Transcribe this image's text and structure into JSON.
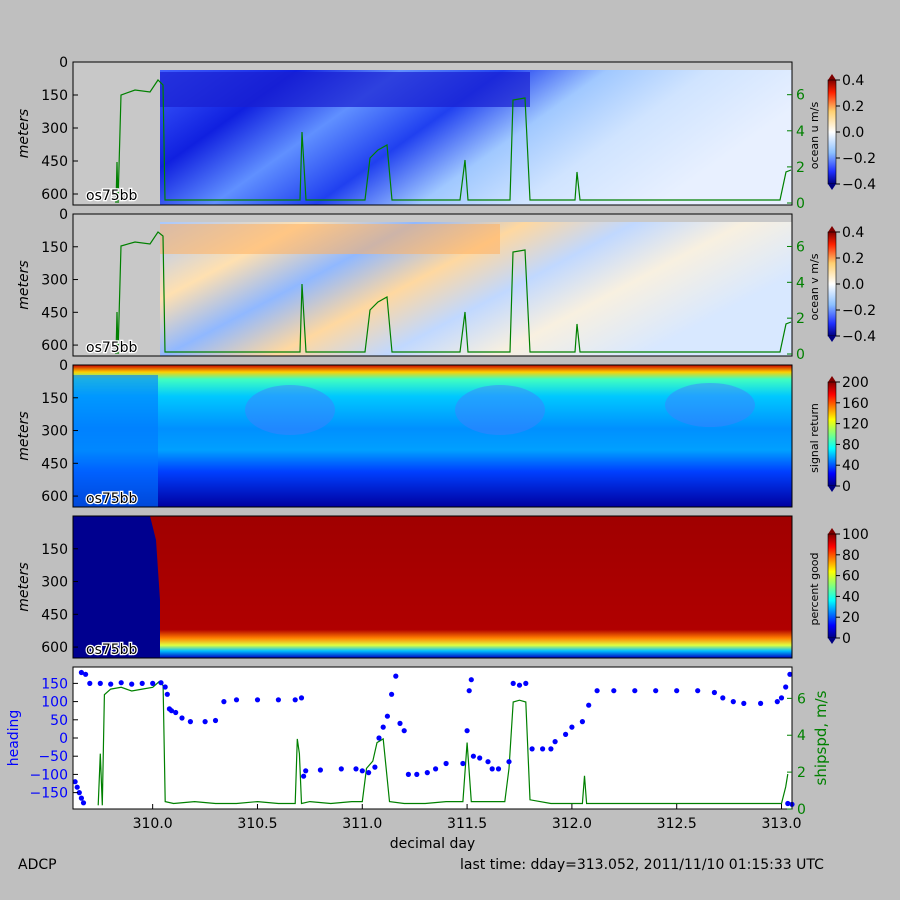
{
  "footer": {
    "left": "ADCP",
    "right": "last time: dday=313.052,  2011/11/10 01:15:33 UTC"
  },
  "colors": {
    "figure_bg": "#bfbfbf",
    "ship_speed_line": "#008000",
    "heading_points": "#0000ff",
    "no_data_gray": "#c8c8c8"
  },
  "chart_data": [
    {
      "type": "heatmap",
      "panel": "ocean-u",
      "ylabel": "meters",
      "y_ticks": [
        "0",
        "150",
        "300",
        "450",
        "600"
      ],
      "y_inverted": true,
      "ylim": [
        0,
        650
      ],
      "instrument_label": "os75bb",
      "colorbar": {
        "label": "ocean u m/s",
        "ticks": [
          "0.4",
          "0.2",
          "0.0",
          "−0.2",
          "−0.4"
        ],
        "range": [
          -0.45,
          0.45
        ],
        "colormap": "blue-white-red"
      },
      "right_axis": {
        "ticks": [
          "0",
          "2",
          "4",
          "6"
        ],
        "color": "#008000"
      }
    },
    {
      "type": "heatmap",
      "panel": "ocean-v",
      "ylabel": "meters",
      "y_ticks": [
        "0",
        "150",
        "300",
        "450",
        "600"
      ],
      "y_inverted": true,
      "ylim": [
        0,
        650
      ],
      "instrument_label": "os75bb",
      "colorbar": {
        "label": "ocean v m/s",
        "ticks": [
          "0.4",
          "0.2",
          "0.0",
          "−0.2",
          "−0.4"
        ],
        "range": [
          -0.45,
          0.45
        ],
        "colormap": "blue-white-red"
      },
      "right_axis": {
        "ticks": [
          "0",
          "2",
          "4",
          "6"
        ],
        "color": "#008000"
      }
    },
    {
      "type": "heatmap",
      "panel": "signal-return",
      "ylabel": "meters",
      "y_ticks": [
        "0",
        "150",
        "300",
        "450",
        "600"
      ],
      "y_inverted": true,
      "ylim": [
        0,
        650
      ],
      "instrument_label": "os75bb",
      "colorbar": {
        "label": "signal return",
        "ticks": [
          "200",
          "160",
          "120",
          "80",
          "40",
          "0"
        ],
        "range": [
          0,
          200
        ],
        "colormap": "jet"
      }
    },
    {
      "type": "heatmap",
      "panel": "percent-good",
      "ylabel": "meters",
      "y_ticks": [
        "150",
        "300",
        "450",
        "600"
      ],
      "y_inverted": true,
      "ylim": [
        0,
        650
      ],
      "instrument_label": "os75bb",
      "colorbar": {
        "label": "percent good",
        "ticks": [
          "100",
          "80",
          "60",
          "40",
          "20",
          "0"
        ],
        "range": [
          0,
          100
        ],
        "colormap": "jet"
      }
    },
    {
      "type": "scatter",
      "panel": "heading-shipspd",
      "xlabel": "decimal day",
      "x_ticks": [
        "310.0",
        "310.5",
        "311.0",
        "311.5",
        "312.0",
        "312.5",
        "313.0"
      ],
      "xlim": [
        309.62,
        313.05
      ],
      "ylabel": "heading",
      "y_ticks": [
        "150",
        "100",
        "50",
        "0",
        "−50",
        "−100",
        "−150"
      ],
      "ylim": [
        -195,
        195
      ],
      "y2label": "shipspd, m/s",
      "y2_ticks": [
        "0",
        "2",
        "4",
        "6"
      ],
      "y2lim": [
        0,
        7.7
      ],
      "series": [
        {
          "kind": "heading",
          "points": [
            [
              309.63,
              -120
            ],
            [
              309.64,
              -135
            ],
            [
              309.65,
              -150
            ],
            [
              309.66,
              -165
            ],
            [
              309.67,
              -178
            ],
            [
              309.66,
              180
            ],
            [
              309.68,
              175
            ],
            [
              309.7,
              150
            ],
            [
              309.75,
              150
            ],
            [
              309.8,
              148
            ],
            [
              309.85,
              152
            ],
            [
              309.9,
              148
            ],
            [
              309.95,
              150
            ],
            [
              310.0,
              150
            ],
            [
              310.04,
              152
            ],
            [
              310.06,
              140
            ],
            [
              310.07,
              120
            ],
            [
              310.08,
              80
            ],
            [
              310.09,
              75
            ],
            [
              310.11,
              70
            ],
            [
              310.14,
              55
            ],
            [
              310.18,
              45
            ],
            [
              310.25,
              45
            ],
            [
              310.3,
              48
            ],
            [
              310.34,
              100
            ],
            [
              310.4,
              105
            ],
            [
              310.5,
              105
            ],
            [
              310.6,
              105
            ],
            [
              310.68,
              105
            ],
            [
              310.71,
              110
            ],
            [
              310.72,
              -105
            ],
            [
              310.73,
              -90
            ],
            [
              310.8,
              -88
            ],
            [
              310.9,
              -85
            ],
            [
              310.97,
              -85
            ],
            [
              311.0,
              -90
            ],
            [
              311.03,
              -95
            ],
            [
              311.06,
              -80
            ],
            [
              311.08,
              0
            ],
            [
              311.1,
              30
            ],
            [
              311.12,
              60
            ],
            [
              311.14,
              120
            ],
            [
              311.16,
              170
            ],
            [
              311.18,
              40
            ],
            [
              311.2,
              20
            ],
            [
              311.22,
              -100
            ],
            [
              311.26,
              -100
            ],
            [
              311.31,
              -95
            ],
            [
              311.35,
              -85
            ],
            [
              311.4,
              -70
            ],
            [
              311.48,
              -70
            ],
            [
              311.5,
              20
            ],
            [
              311.51,
              130
            ],
            [
              311.52,
              160
            ],
            [
              311.53,
              -50
            ],
            [
              311.56,
              -55
            ],
            [
              311.6,
              -65
            ],
            [
              311.62,
              -85
            ],
            [
              311.65,
              -85
            ],
            [
              311.7,
              -65
            ],
            [
              311.72,
              150
            ],
            [
              311.75,
              145
            ],
            [
              311.78,
              150
            ],
            [
              311.81,
              -30
            ],
            [
              311.86,
              -30
            ],
            [
              311.9,
              -30
            ],
            [
              311.92,
              -10
            ],
            [
              311.97,
              10
            ],
            [
              312.0,
              30
            ],
            [
              312.05,
              45
            ],
            [
              312.08,
              90
            ],
            [
              312.12,
              130
            ],
            [
              312.2,
              130
            ],
            [
              312.3,
              130
            ],
            [
              312.4,
              130
            ],
            [
              312.5,
              130
            ],
            [
              312.6,
              130
            ],
            [
              312.68,
              125
            ],
            [
              312.72,
              110
            ],
            [
              312.77,
              100
            ],
            [
              312.82,
              95
            ],
            [
              312.9,
              95
            ],
            [
              312.98,
              100
            ],
            [
              313.0,
              110
            ],
            [
              313.02,
              140
            ],
            [
              313.04,
              175
            ],
            [
              313.03,
              -180
            ],
            [
              313.05,
              -182
            ]
          ]
        },
        {
          "kind": "shipspd",
          "points": [
            [
              309.74,
              0.2
            ],
            [
              309.75,
              3.0
            ],
            [
              309.76,
              0.2
            ],
            [
              309.77,
              6.2
            ],
            [
              309.8,
              6.5
            ],
            [
              309.85,
              6.6
            ],
            [
              309.9,
              6.4
            ],
            [
              309.95,
              6.5
            ],
            [
              310.0,
              6.6
            ],
            [
              310.03,
              6.9
            ],
            [
              310.05,
              6.7
            ],
            [
              310.06,
              0.4
            ],
            [
              310.1,
              0.3
            ],
            [
              310.2,
              0.4
            ],
            [
              310.3,
              0.3
            ],
            [
              310.4,
              0.3
            ],
            [
              310.5,
              0.4
            ],
            [
              310.6,
              0.3
            ],
            [
              310.68,
              0.3
            ],
            [
              310.69,
              3.8
            ],
            [
              310.7,
              3.0
            ],
            [
              310.71,
              0.3
            ],
            [
              310.75,
              0.4
            ],
            [
              310.85,
              0.3
            ],
            [
              310.95,
              0.4
            ],
            [
              311.0,
              0.4
            ],
            [
              311.02,
              2.2
            ],
            [
              311.05,
              2.6
            ],
            [
              311.07,
              3.6
            ],
            [
              311.1,
              3.8
            ],
            [
              311.13,
              0.4
            ],
            [
              311.2,
              0.3
            ],
            [
              311.3,
              0.3
            ],
            [
              311.4,
              0.4
            ],
            [
              311.48,
              0.4
            ],
            [
              311.5,
              3.6
            ],
            [
              311.52,
              0.4
            ],
            [
              311.6,
              0.4
            ],
            [
              311.68,
              0.4
            ],
            [
              311.7,
              2.2
            ],
            [
              311.72,
              5.8
            ],
            [
              311.75,
              5.9
            ],
            [
              311.78,
              5.8
            ],
            [
              311.8,
              0.5
            ],
            [
              311.9,
              0.3
            ],
            [
              312.0,
              0.3
            ],
            [
              312.05,
              0.3
            ],
            [
              312.06,
              1.8
            ],
            [
              312.07,
              0.3
            ],
            [
              312.2,
              0.3
            ],
            [
              312.4,
              0.3
            ],
            [
              312.6,
              0.3
            ],
            [
              312.8,
              0.3
            ],
            [
              313.0,
              0.3
            ],
            [
              313.02,
              1.2
            ],
            [
              313.03,
              1.9
            ]
          ]
        }
      ]
    }
  ]
}
